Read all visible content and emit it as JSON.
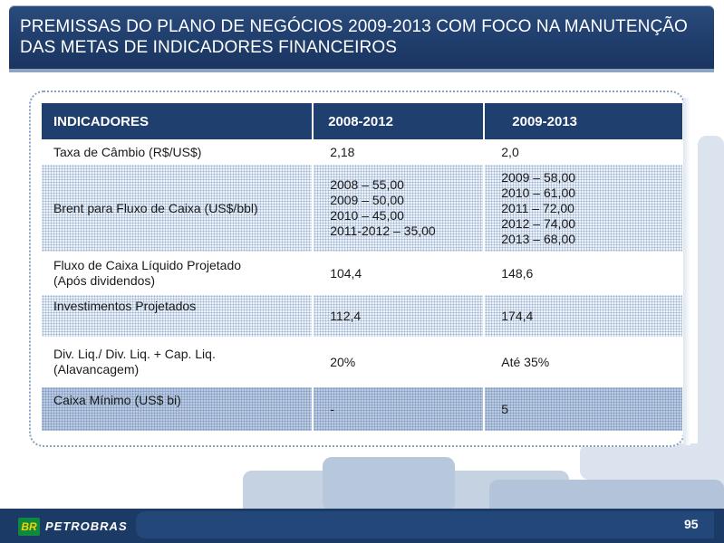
{
  "header": {
    "title": "PREMISSAS DO PLANO DE NEGÓCIOS 2009-2013 COM FOCO NA MANUTENÇÃO DAS METAS DE INDICADORES FINANCEIROS"
  },
  "table": {
    "columns": [
      "INDICADORES",
      "2008-2012",
      "2009-2013"
    ],
    "rows": [
      {
        "indicator": "Taxa de Câmbio (R$/US$)",
        "v2008_2012": "2,18",
        "v2009_2013": "2,0"
      },
      {
        "indicator": "Brent para Fluxo de Caixa (US$/bbl)",
        "v2008_2012": [
          "2008 – 55,00",
          "2009 – 50,00",
          "2010 – 45,00",
          "2011-2012 – 35,00"
        ],
        "v2009_2013": [
          "2009 – 58,00",
          "2010 – 61,00",
          "2011 – 72,00",
          "2012 – 74,00",
          "2013 – 68,00"
        ]
      },
      {
        "indicator_lines": [
          "Fluxo de Caixa Líquido Projetado",
          "(Após dividendos)"
        ],
        "v2008_2012": "104,4",
        "v2009_2013": "148,6"
      },
      {
        "indicator": "Investimentos Projetados",
        "v2008_2012": "112,4",
        "v2009_2013": "174,4"
      },
      {
        "indicator_lines": [
          "Div. Liq./ Div. Liq. + Cap. Liq.",
          "(Alavancagem)"
        ],
        "v2008_2012": "20%",
        "v2009_2013": "Até 35%"
      },
      {
        "indicator": "Caixa Mínimo (US$ bi)",
        "v2008_2012": "-",
        "v2009_2013": "5"
      }
    ]
  },
  "footer": {
    "logo_mark": "BR",
    "brand": "PETROBRAS",
    "page_number": "95"
  }
}
